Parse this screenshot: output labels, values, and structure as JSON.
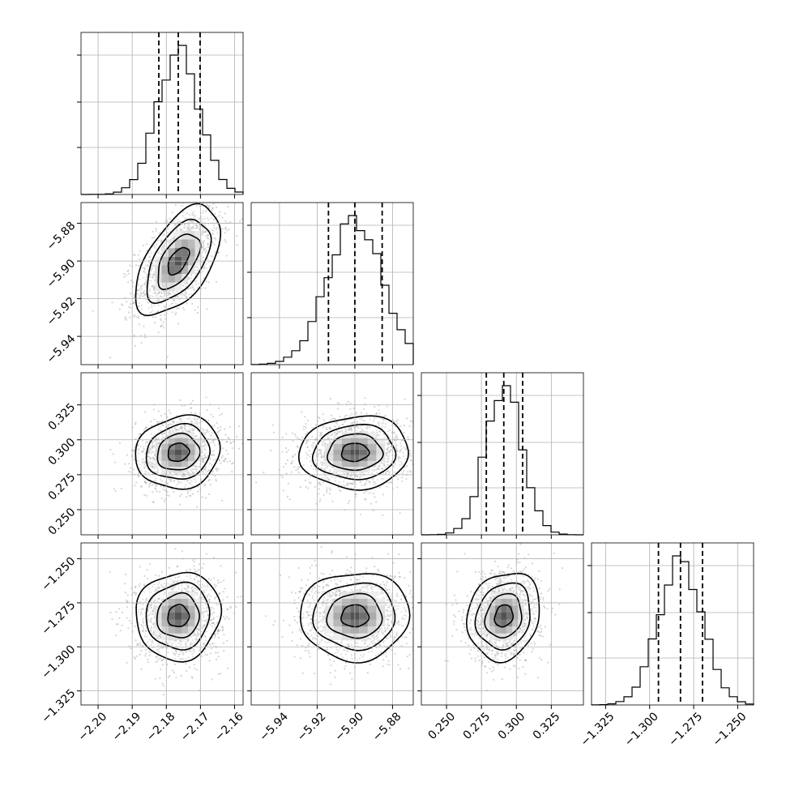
{
  "chart_data": {
    "type": "corner",
    "parameters": [
      {
        "center": -2.1765,
        "sigma": 0.0062,
        "range": [
          -2.205,
          -2.1575
        ],
        "ticks": [
          -2.2,
          -2.19,
          -2.18,
          -2.17,
          -2.16
        ],
        "tick_labels": [
          "−2.20",
          "−2.19",
          "−2.18",
          "−2.17",
          "−2.16"
        ],
        "quantiles": [
          -2.1822,
          -2.1765,
          -2.1701
        ]
      },
      {
        "center": -5.9,
        "sigma": 0.0145,
        "range": [
          -5.955,
          -5.869
        ],
        "ticks": [
          -5.94,
          -5.92,
          -5.9,
          -5.88
        ],
        "tick_labels": [
          "−5.94",
          "−5.92",
          "−5.90",
          "−5.88"
        ],
        "quantiles": [
          -5.914,
          -5.9,
          -5.8855
        ]
      },
      {
        "center": 0.291,
        "sigma": 0.013,
        "range": [
          0.232,
          0.348
        ],
        "ticks": [
          0.25,
          0.275,
          0.3,
          0.325
        ],
        "tick_labels": [
          "0.250",
          "0.275",
          "0.300",
          "0.325"
        ],
        "quantiles": [
          0.2785,
          0.291,
          0.3045
        ]
      },
      {
        "center": -1.2825,
        "sigma": 0.0125,
        "range": [
          -1.333,
          -1.241
        ],
        "ticks": [
          -1.325,
          -1.3,
          -1.275,
          -1.25
        ],
        "tick_labels": [
          "−1.325",
          "−1.300",
          "−1.275",
          "−1.250"
        ],
        "quantiles": [
          -1.295,
          -1.2825,
          -1.27
        ]
      }
    ],
    "correlations": {
      "0-1": 0.55,
      "0-2": 0.1,
      "0-3": 0.05,
      "1-2": 0.05,
      "1-3": 0.02,
      "2-3": 0.15
    },
    "grid": true,
    "contour_levels_sigma": [
      0.5,
      1.0,
      1.5,
      2.0
    ],
    "colors": {
      "hist": "#000000",
      "points": "#888888",
      "grid": "#b0b0b0"
    }
  }
}
